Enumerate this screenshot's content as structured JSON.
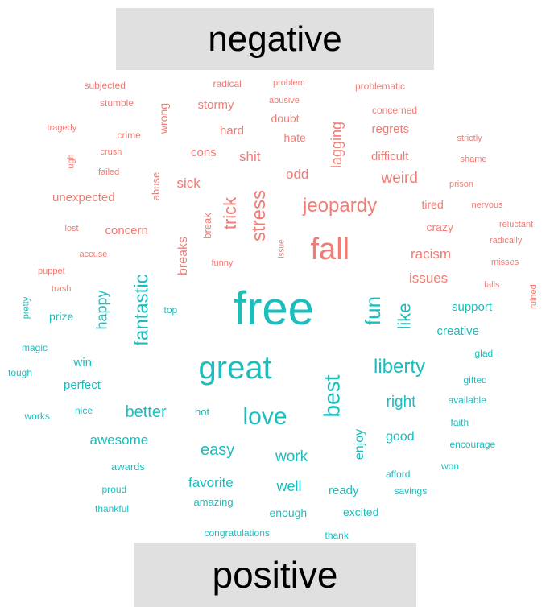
{
  "headers": {
    "negative": "negative",
    "positive": "positive"
  },
  "colors": {
    "negative": "#F07C75",
    "positive": "#1CBDBD",
    "header_bg": "#E0E0E0"
  },
  "chart_data": {
    "type": "comparison-wordcloud",
    "groups": [
      "negative",
      "positive"
    ],
    "words": {
      "negative": [
        "fall",
        "jeopardy",
        "stress",
        "trick",
        "shit",
        "odd",
        "sick",
        "lagging",
        "weird",
        "racism",
        "issues",
        "concern",
        "breaks",
        "unexpected",
        "regrets",
        "difficult",
        "stormy",
        "hard",
        "cons",
        "doubt",
        "hate",
        "wrong",
        "abuse",
        "tired",
        "crazy",
        "break",
        "subjected",
        "radical",
        "problem",
        "problematic",
        "stumble",
        "abusive",
        "concerned",
        "tragedy",
        "crime",
        "strictly",
        "crush",
        "ugh",
        "shame",
        "failed",
        "prison",
        "nervous",
        "lost",
        "reluctant",
        "radically",
        "accuse",
        "funny",
        "issue",
        "puppet",
        "misses",
        "falls",
        "trash",
        "ruined"
      ],
      "positive": [
        "free",
        "great",
        "fun",
        "like",
        "fantastic",
        "liberty",
        "best",
        "love",
        "better",
        "happy",
        "support",
        "creative",
        "awesome",
        "easy",
        "work",
        "well",
        "favorite",
        "right",
        "enjoy",
        "good",
        "win",
        "perfect",
        "prize",
        "ready",
        "excited",
        "enough",
        "amazing",
        "hot",
        "nice",
        "awards",
        "proud",
        "thankful",
        "congratulations",
        "thank",
        "afford",
        "savings",
        "won",
        "encourage",
        "faith",
        "available",
        "gifted",
        "glad",
        "top",
        "pretty",
        "magic",
        "tough",
        "works"
      ]
    }
  }
}
